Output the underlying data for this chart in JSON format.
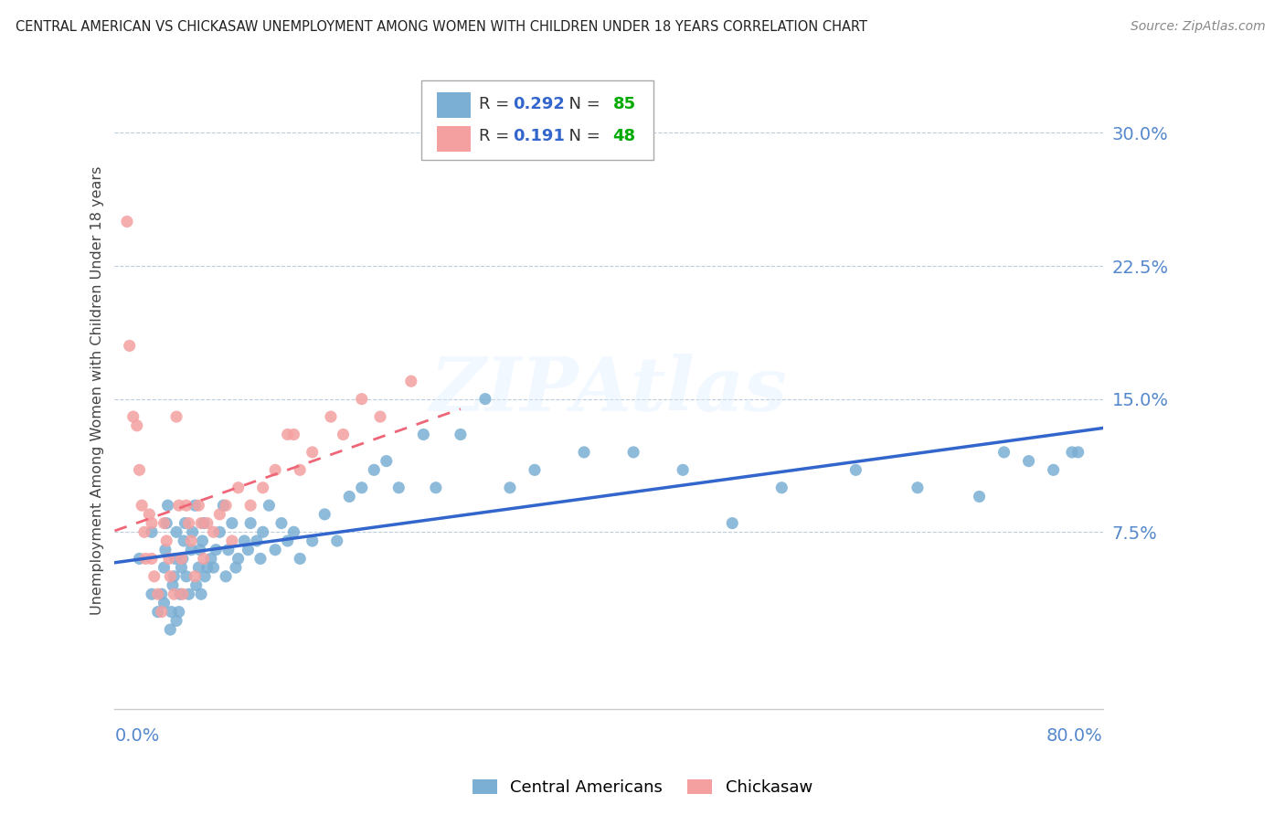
{
  "title": "CENTRAL AMERICAN VS CHICKASAW UNEMPLOYMENT AMONG WOMEN WITH CHILDREN UNDER 18 YEARS CORRELATION CHART",
  "source": "Source: ZipAtlas.com",
  "ylabel": "Unemployment Among Women with Children Under 18 years",
  "xlim": [
    0.0,
    0.8
  ],
  "ylim": [
    -0.025,
    0.335
  ],
  "yticks": [
    0.0,
    0.075,
    0.15,
    0.225,
    0.3
  ],
  "ytick_labels": [
    "",
    "7.5%",
    "15.0%",
    "22.5%",
    "30.0%"
  ],
  "r_blue": 0.292,
  "n_blue": 85,
  "r_pink": 0.191,
  "n_pink": 48,
  "blue_color": "#7BAFD4",
  "pink_color": "#F4A0A0",
  "blue_line_color": "#3366CC",
  "pink_line_color": "#EE6677",
  "tick_color": "#5588CC",
  "legend_label_blue": "Central Americans",
  "legend_label_pink": "Chickasaw",
  "watermark": "ZIPAtlas",
  "blue_scatter_x": [
    0.02,
    0.03,
    0.03,
    0.035,
    0.038,
    0.04,
    0.04,
    0.041,
    0.042,
    0.043,
    0.045,
    0.046,
    0.047,
    0.048,
    0.049,
    0.05,
    0.05,
    0.052,
    0.053,
    0.054,
    0.055,
    0.056,
    0.057,
    0.058,
    0.06,
    0.062,
    0.063,
    0.065,
    0.066,
    0.068,
    0.069,
    0.07,
    0.071,
    0.072,
    0.073,
    0.075,
    0.078,
    0.08,
    0.082,
    0.085,
    0.088,
    0.09,
    0.092,
    0.095,
    0.098,
    0.1,
    0.105,
    0.108,
    0.11,
    0.115,
    0.118,
    0.12,
    0.125,
    0.13,
    0.135,
    0.14,
    0.145,
    0.15,
    0.16,
    0.17,
    0.18,
    0.19,
    0.2,
    0.21,
    0.22,
    0.23,
    0.25,
    0.26,
    0.28,
    0.3,
    0.32,
    0.34,
    0.38,
    0.42,
    0.46,
    0.5,
    0.54,
    0.6,
    0.65,
    0.7,
    0.72,
    0.74,
    0.76,
    0.775,
    0.78
  ],
  "blue_scatter_y": [
    0.06,
    0.04,
    0.075,
    0.03,
    0.04,
    0.035,
    0.055,
    0.065,
    0.08,
    0.09,
    0.02,
    0.03,
    0.045,
    0.05,
    0.06,
    0.025,
    0.075,
    0.03,
    0.04,
    0.055,
    0.06,
    0.07,
    0.08,
    0.05,
    0.04,
    0.065,
    0.075,
    0.09,
    0.045,
    0.055,
    0.065,
    0.04,
    0.07,
    0.08,
    0.05,
    0.055,
    0.06,
    0.055,
    0.065,
    0.075,
    0.09,
    0.05,
    0.065,
    0.08,
    0.055,
    0.06,
    0.07,
    0.065,
    0.08,
    0.07,
    0.06,
    0.075,
    0.09,
    0.065,
    0.08,
    0.07,
    0.075,
    0.06,
    0.07,
    0.085,
    0.07,
    0.095,
    0.1,
    0.11,
    0.115,
    0.1,
    0.13,
    0.1,
    0.13,
    0.15,
    0.1,
    0.11,
    0.12,
    0.12,
    0.11,
    0.08,
    0.1,
    0.11,
    0.1,
    0.095,
    0.12,
    0.115,
    0.11,
    0.12,
    0.12
  ],
  "pink_scatter_x": [
    0.01,
    0.012,
    0.015,
    0.018,
    0.02,
    0.022,
    0.024,
    0.025,
    0.028,
    0.03,
    0.03,
    0.032,
    0.035,
    0.038,
    0.04,
    0.042,
    0.044,
    0.045,
    0.048,
    0.05,
    0.052,
    0.054,
    0.055,
    0.058,
    0.06,
    0.062,
    0.065,
    0.068,
    0.07,
    0.072,
    0.075,
    0.08,
    0.085,
    0.09,
    0.095,
    0.1,
    0.11,
    0.12,
    0.13,
    0.14,
    0.145,
    0.15,
    0.16,
    0.175,
    0.185,
    0.2,
    0.215,
    0.24
  ],
  "pink_scatter_y": [
    0.25,
    0.18,
    0.14,
    0.135,
    0.11,
    0.09,
    0.075,
    0.06,
    0.085,
    0.08,
    0.06,
    0.05,
    0.04,
    0.03,
    0.08,
    0.07,
    0.06,
    0.05,
    0.04,
    0.14,
    0.09,
    0.06,
    0.04,
    0.09,
    0.08,
    0.07,
    0.05,
    0.09,
    0.08,
    0.06,
    0.08,
    0.075,
    0.085,
    0.09,
    0.07,
    0.1,
    0.09,
    0.1,
    0.11,
    0.13,
    0.13,
    0.11,
    0.12,
    0.14,
    0.13,
    0.15,
    0.14,
    0.16
  ]
}
